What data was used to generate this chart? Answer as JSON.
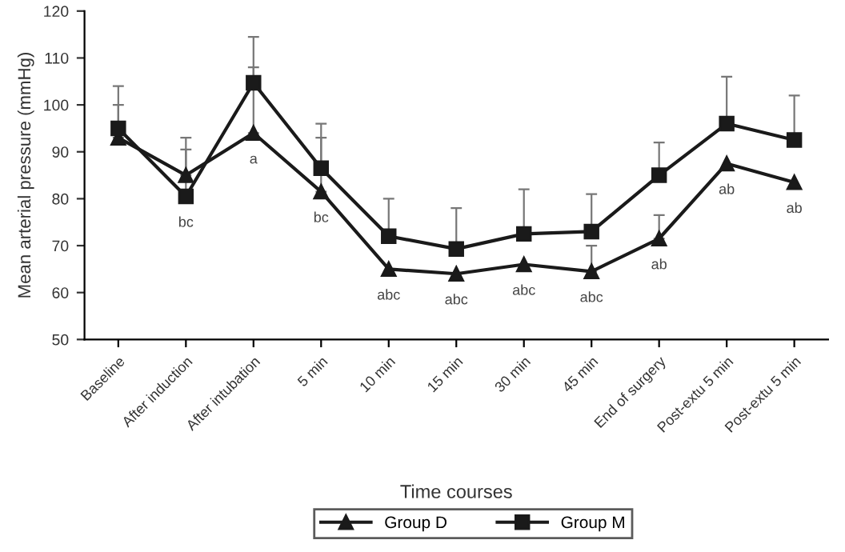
{
  "chart_data": {
    "type": "line",
    "xlabel": "Time courses",
    "ylabel": "Mean arterial pressure (mmHg)",
    "categories": [
      "Baseline",
      "After induction",
      "After intubation",
      "5 min",
      "10 min",
      "15 min",
      "30 min",
      "45 min",
      "End of surgery",
      "Post-extu 5 min",
      "Post-extu 5 min"
    ],
    "series": [
      {
        "name": "Group D",
        "color": "#1a1a1a",
        "marker": "triangle",
        "values": [
          93,
          85,
          94,
          81.5,
          65,
          64,
          66,
          64.5,
          71.5,
          87.5,
          83.5
        ],
        "errors": [
          [
            93,
            100
          ],
          [
            85,
            93
          ],
          [
            94,
            108
          ],
          [
            81.5,
            93
          ],
          null,
          null,
          null,
          [
            64.5,
            70
          ],
          [
            71.5,
            76.5
          ],
          null,
          null
        ]
      },
      {
        "name": "Group M",
        "color": "#1a1a1a",
        "marker": "square",
        "values": [
          95,
          80.5,
          104.7,
          86.5,
          72,
          69.3,
          72.5,
          73,
          85,
          96,
          92.5
        ],
        "errors": [
          [
            95,
            104
          ],
          [
            80.5,
            90.5
          ],
          [
            104.7,
            114.5
          ],
          [
            86.5,
            96
          ],
          [
            72,
            80
          ],
          [
            69.3,
            78
          ],
          [
            72.5,
            82
          ],
          [
            73,
            81
          ],
          [
            85,
            92
          ],
          [
            96,
            106
          ],
          [
            92.5,
            102
          ]
        ]
      }
    ],
    "ylim": [
      50,
      120
    ],
    "yticks": [
      50,
      60,
      70,
      80,
      90,
      100,
      110,
      120
    ],
    "grid": false,
    "legend": "bottom",
    "line_style": "solid",
    "annotations": [
      {
        "text": "bc",
        "x": "After induction",
        "y": 80.5
      },
      {
        "text": "a",
        "x": "After intubation",
        "y": 94
      },
      {
        "text": "bc",
        "x": "5 min",
        "y": 81.5
      },
      {
        "text": "abc",
        "x": "10 min",
        "y": 65
      },
      {
        "text": "abc",
        "x": "15 min",
        "y": 64
      },
      {
        "text": "abc",
        "x": "30 min",
        "y": 66
      },
      {
        "text": "abc",
        "x": "45 min",
        "y": 64.5
      },
      {
        "text": "ab",
        "x": "End of surgery",
        "y": 71.5
      },
      {
        "text": "ab",
        "x": "Post-extu 5 min",
        "y": 87.5
      },
      "ab"
    ]
  }
}
